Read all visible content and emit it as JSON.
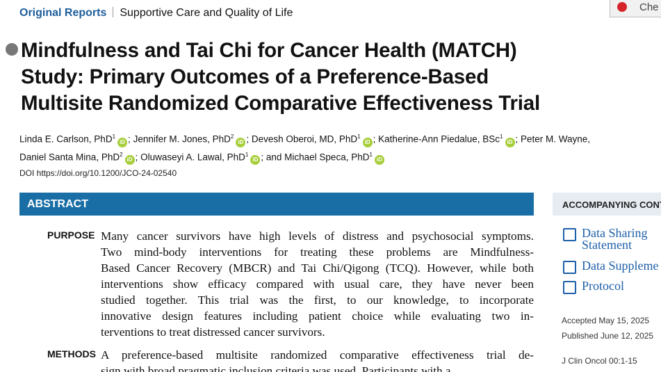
{
  "header": {
    "section": "Original Reports",
    "subsection": "Supportive Care and Quality of Life",
    "update_button": "Che"
  },
  "article": {
    "title_lines": [
      "Mindfulness and Tai Chi for Cancer Health (MATCH)",
      "Study: Primary Outcomes of a Preference-Based",
      "Multisite Randomized Comparative Effectiveness Trial"
    ],
    "author_lines": [
      [
        {
          "name": "Linda E. Carlson, PhD",
          "sup": "1",
          "sep": ";"
        },
        {
          "name": "Jennifer M. Jones, PhD",
          "sup": "2",
          "sep": ";"
        },
        {
          "name": "Devesh Oberoi, MD, PhD",
          "sup": "1",
          "sep": ";"
        },
        {
          "name": "Katherine-Ann Piedalue, BSc",
          "sup": "1",
          "sep": ";"
        },
        {
          "name": "Peter M. Wayne,"
        }
      ],
      [
        {
          "name": "Daniel Santa Mina, PhD",
          "sup": "2",
          "sep": ";"
        },
        {
          "name": "Oluwaseyi A. Lawal, PhD",
          "sup": "1",
          "sep": ";"
        },
        {
          "name": "and Michael Speca, PhD",
          "sup": "1"
        }
      ]
    ],
    "doi": "DOI https://doi.org/10.1200/JCO-24-02540",
    "abstract": {
      "heading": "ABSTRACT",
      "sections": [
        {
          "label": "PURPOSE",
          "lines": [
            "Many cancer survivors have high levels of distress and psychosocial symptoms.",
            "Two mind-body interventions for treating these problems are Mindfulness-",
            "Based Cancer Recovery (MBCR) and Tai Chi/Qigong (TCQ). However, while both",
            "interventions show efficacy compared with usual care, they have never been",
            "studied together. This trial was the first, to our knowledge, to incorporate",
            "innovative design features including patient choice while evaluating two in-",
            "terventions to treat distressed cancer survivors."
          ]
        },
        {
          "label": "METHODS",
          "lines": [
            "A preference-based multisite randomized comparative effectiveness trial de-",
            "sign with broad pragmatic inclusion criteria was used. Participants with a"
          ]
        }
      ]
    }
  },
  "sidebar": {
    "heading": "ACCOMPANYING CONT",
    "links": [
      [
        "Data Sharing",
        "Statement"
      ],
      [
        "Data Suppleme"
      ],
      [
        "Protocol"
      ]
    ],
    "dates": [
      "Accepted May 15, 2025",
      "Published June 12, 2025"
    ],
    "citation": "J Clin Oncol 00:1-15"
  }
}
